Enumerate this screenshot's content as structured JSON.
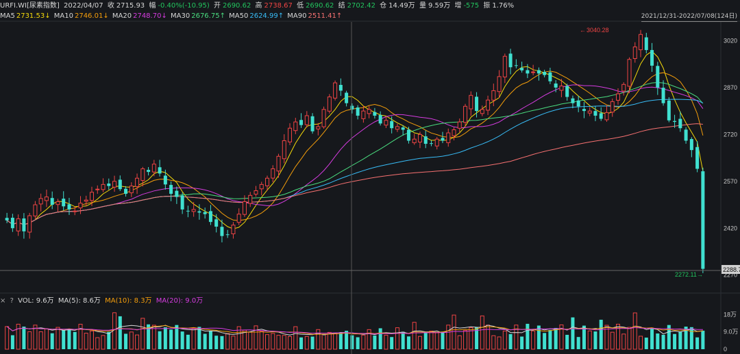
{
  "header": {
    "symbol": "URFI.WI[尿素指数]",
    "date": "2022/04/07",
    "close_label": "收",
    "close": "2715.93",
    "change_label": "幅",
    "change": "-0.40%(-10.95)",
    "open_label": "开",
    "open": "2690.62",
    "high_label": "高",
    "high": "2738.67",
    "low_label": "低",
    "low": "2690.62",
    "settle_label": "结",
    "settle": "2702.42",
    "oi_label": "仓",
    "oi": "14.49万",
    "volume_label": "量",
    "volume": "9.59万",
    "incr_label": "增",
    "incr": "-575",
    "amp_label": "振",
    "amp": "1.76%"
  },
  "ma_bar": [
    {
      "label": "MA5",
      "value": "2731.53↓",
      "color": "#f5d90a"
    },
    {
      "label": "MA10",
      "value": "2746.01↓",
      "color": "#f59e0b"
    },
    {
      "label": "MA20",
      "value": "2748.70↓",
      "color": "#d63ce0"
    },
    {
      "label": "MA30",
      "value": "2676.75↑",
      "color": "#4ade80"
    },
    {
      "label": "MA50",
      "value": "2624.99↑",
      "color": "#38bdf8"
    },
    {
      "label": "MA90",
      "value": "2511.41↑",
      "color": "#f87171"
    }
  ],
  "range_label": "2021/12/31-2022/07/08(124日)",
  "y_ticks": [
    "3020",
    "2870",
    "2720",
    "2570",
    "2420",
    "2270"
  ],
  "y_min": 2230,
  "y_max": 3080,
  "last_price_label": "2288.7",
  "annotations": {
    "high_label": "3040.28",
    "low_label": "2272.11"
  },
  "volume_panel": {
    "close_icon": "×",
    "help_icon": "?",
    "vol_label": "VOL: 9.6万",
    "ma5_label": "MA(5): 8.6万",
    "ma10_label": "MA(10): 8.3万",
    "ma20_label": "MA(20): 9.0万",
    "ticks": [
      "18万",
      "9.0万",
      "0"
    ]
  },
  "colors": {
    "up": "#ef4444",
    "down": "#40e0d0",
    "bg": "#16181c"
  },
  "chart_data": {
    "type": "candlestick",
    "closes": [
      2445,
      2420,
      2450,
      2410,
      2460,
      2495,
      2515,
      2520,
      2495,
      2505,
      2490,
      2480,
      2475,
      2500,
      2510,
      2535,
      2545,
      2560,
      2555,
      2570,
      2545,
      2530,
      2555,
      2580,
      2610,
      2600,
      2625,
      2595,
      2560,
      2530,
      2520,
      2480,
      2475,
      2480,
      2470,
      2465,
      2440,
      2425,
      2395,
      2400,
      2430,
      2465,
      2505,
      2525,
      2540,
      2560,
      2580,
      2610,
      2650,
      2700,
      2740,
      2760,
      2750,
      2780,
      2730,
      2745,
      2800,
      2840,
      2885,
      2860,
      2820,
      2800,
      2780,
      2795,
      2800,
      2780,
      2755,
      2765,
      2740,
      2745,
      2735,
      2700,
      2705,
      2720,
      2690,
      2690,
      2705,
      2700,
      2725,
      2735,
      2760,
      2810,
      2845,
      2795,
      2800,
      2830,
      2860,
      2905,
      2970,
      2935,
      2940,
      2925,
      2915,
      2920,
      2915,
      2910,
      2890,
      2870,
      2875,
      2840,
      2820,
      2810,
      2795,
      2795,
      2780,
      2770,
      2790,
      2825,
      2850,
      2880,
      2960,
      3000,
      3040,
      2990,
      2940,
      2870,
      2820,
      2765,
      2760,
      2740,
      2700,
      2670,
      2610,
      2290
    ]
  }
}
